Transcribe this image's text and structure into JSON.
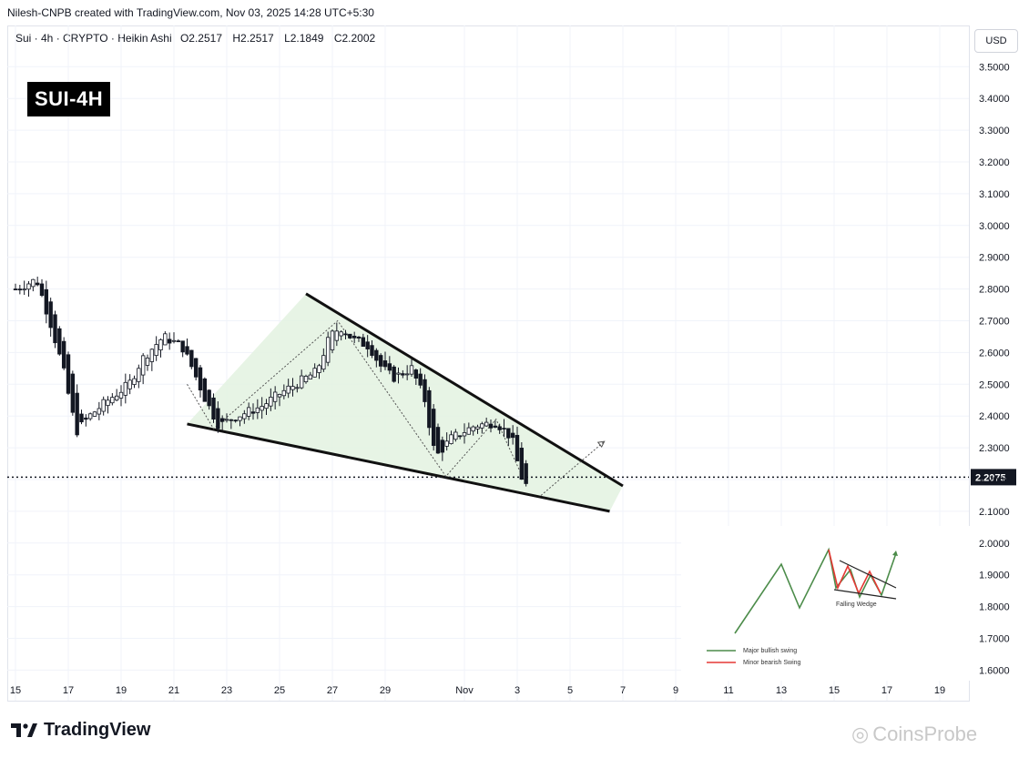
{
  "header": {
    "credit": "Nilesh-CNPB created with TradingView.com, Nov 03, 2025 14:28 UTC+5:30"
  },
  "symbol": {
    "title": "Sui · 4h · CRYPTO · Heikin Ashi",
    "open": "O2.2517",
    "high": "H2.2517",
    "low": "L2.1849",
    "close": "C2.2002"
  },
  "badge": "SUI-4H",
  "currency": "USD",
  "branding": {
    "logo_text": "TradingView",
    "watermark": "CoinsProbe"
  },
  "inset": {
    "legend_major": "Major bullish swing",
    "legend_minor": "Minor bearish Swing",
    "pattern_label": "Falling Wedge",
    "colors": {
      "major": "#4c8c4a",
      "minor": "#e53935"
    }
  },
  "chart_data": {
    "type": "candlestick",
    "candle_style": "Heikin Ashi",
    "current_price": 2.2075,
    "current_price_label": "2.2075",
    "y_range": [
      1.55,
      3.58
    ],
    "y_ticks": [
      "3.5000",
      "3.4000",
      "3.3000",
      "3.2000",
      "3.1000",
      "3.0000",
      "2.9000",
      "2.8000",
      "2.7000",
      "2.6000",
      "2.5000",
      "2.4000",
      "2.3000",
      "2.2000",
      "2.1000",
      "2.0000",
      "1.9000",
      "1.8000",
      "1.7000",
      "1.6000"
    ],
    "x_range": [
      15,
      50.5
    ],
    "x_ticks": [
      {
        "label": "15",
        "day": 15
      },
      {
        "label": "17",
        "day": 17
      },
      {
        "label": "19",
        "day": 19
      },
      {
        "label": "21",
        "day": 21
      },
      {
        "label": "23",
        "day": 23
      },
      {
        "label": "25",
        "day": 25
      },
      {
        "label": "27",
        "day": 27
      },
      {
        "label": "29",
        "day": 29
      },
      {
        "label": "Nov",
        "day": 32
      },
      {
        "label": "3",
        "day": 34
      },
      {
        "label": "5",
        "day": 36
      },
      {
        "label": "7",
        "day": 38
      },
      {
        "label": "9",
        "day": 40
      },
      {
        "label": "11",
        "day": 42
      },
      {
        "label": "13",
        "day": 44
      },
      {
        "label": "15",
        "day": 46
      },
      {
        "label": "17",
        "day": 48
      },
      {
        "label": "19",
        "day": 50
      }
    ],
    "price_path": [
      [
        15.0,
        2.8
      ],
      [
        15.8,
        2.83
      ],
      [
        16.3,
        2.7
      ],
      [
        16.8,
        2.55
      ],
      [
        17.3,
        2.35
      ],
      [
        17.8,
        2.4
      ],
      [
        18.5,
        2.45
      ],
      [
        19.3,
        2.5
      ],
      [
        19.8,
        2.58
      ],
      [
        20.6,
        2.65
      ],
      [
        21.3,
        2.62
      ],
      [
        21.7,
        2.55
      ],
      [
        22.2,
        2.45
      ],
      [
        22.7,
        2.37
      ],
      [
        23.4,
        2.4
      ],
      [
        24.3,
        2.43
      ],
      [
        25.0,
        2.47
      ],
      [
        25.8,
        2.51
      ],
      [
        26.4,
        2.54
      ],
      [
        26.9,
        2.65
      ],
      [
        27.3,
        2.68
      ],
      [
        27.8,
        2.64
      ],
      [
        28.4,
        2.62
      ],
      [
        28.8,
        2.56
      ],
      [
        29.3,
        2.52
      ],
      [
        30.0,
        2.55
      ],
      [
        30.5,
        2.45
      ],
      [
        30.9,
        2.27
      ],
      [
        31.5,
        2.33
      ],
      [
        32.4,
        2.37
      ],
      [
        33.2,
        2.38
      ],
      [
        33.8,
        2.33
      ],
      [
        34.1,
        2.22
      ],
      [
        34.3,
        2.18
      ],
      [
        34.5,
        2.2
      ]
    ],
    "wedge": {
      "upper": [
        [
          26.0,
          2.785
        ],
        [
          38.0,
          2.18
        ]
      ],
      "lower": [
        [
          21.5,
          2.375
        ],
        [
          37.5,
          2.1
        ]
      ],
      "fill": "#e3f2e1"
    },
    "projection": [
      [
        34.9,
        2.15
      ],
      [
        37.3,
        2.32
      ]
    ],
    "swing_points": [
      [
        21.5,
        2.5
      ],
      [
        22.5,
        2.36
      ],
      [
        27.2,
        2.7
      ],
      [
        31.3,
        2.21
      ],
      [
        33.2,
        2.39
      ],
      [
        34.3,
        2.19
      ]
    ],
    "colors": {
      "up": "#131722",
      "down": "#131722",
      "line": "#000000"
    }
  }
}
